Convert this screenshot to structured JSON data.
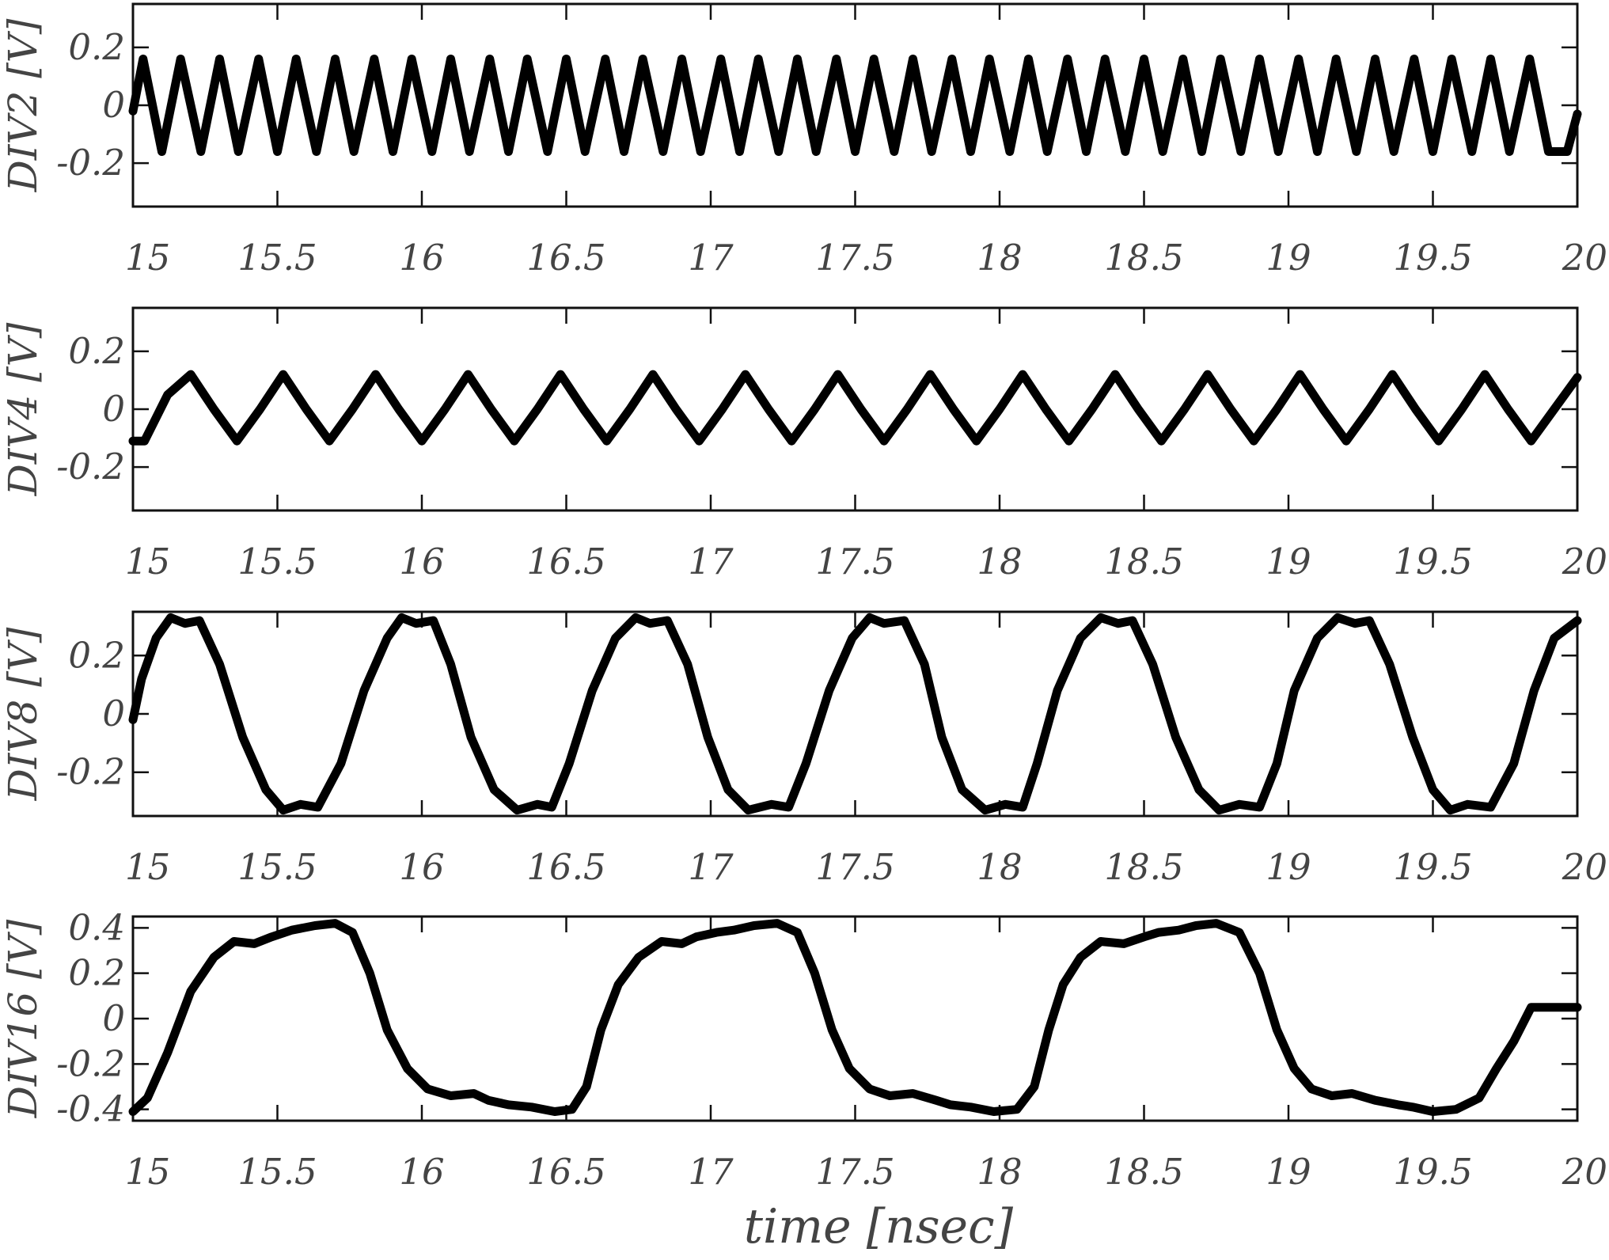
{
  "chart_data": [
    {
      "type": "line",
      "ylabel": "DIV2 [V]",
      "xlim": [
        15,
        20
      ],
      "ylim": [
        -0.35,
        0.35
      ],
      "xticks": [
        15,
        15.5,
        16,
        16.5,
        17,
        17.5,
        18,
        18.5,
        19,
        19.5,
        20
      ],
      "xticklabels": [
        "15",
        "15.5",
        "16",
        "16.5",
        "17",
        "17.5",
        "18",
        "18.5",
        "19",
        "19.5",
        "20"
      ],
      "yticks": [
        -0.2,
        0,
        0.2
      ],
      "yticklabels": [
        "-0.2",
        "0",
        "0.2"
      ],
      "series": [
        {
          "x": [
            15.0,
            15.035,
            15.1,
            15.165,
            15.235,
            15.3,
            15.365,
            15.435,
            15.5,
            15.565,
            15.635,
            15.7,
            15.765,
            15.835,
            15.9,
            15.965,
            16.035,
            16.1,
            16.165,
            16.235,
            16.3,
            16.365,
            16.435,
            16.5,
            16.565,
            16.635,
            16.7,
            16.765,
            16.835,
            16.9,
            16.965,
            17.035,
            17.1,
            17.165,
            17.235,
            17.3,
            17.365,
            17.435,
            17.5,
            17.565,
            17.635,
            17.7,
            17.765,
            17.835,
            17.9,
            17.965,
            18.035,
            18.1,
            18.165,
            18.235,
            18.3,
            18.365,
            18.435,
            18.5,
            18.565,
            18.635,
            18.7,
            18.765,
            18.835,
            18.9,
            18.965,
            19.035,
            19.1,
            19.165,
            19.235,
            19.3,
            19.365,
            19.435,
            19.5,
            19.565,
            19.635,
            19.7,
            19.765,
            19.835,
            19.9,
            19.965,
            20.0
          ],
          "y": [
            -0.02,
            0.16,
            -0.16,
            0.16,
            -0.16,
            0.16,
            -0.16,
            0.16,
            -0.16,
            0.16,
            -0.16,
            0.16,
            -0.16,
            0.16,
            -0.16,
            0.16,
            -0.16,
            0.16,
            -0.16,
            0.16,
            -0.16,
            0.16,
            -0.16,
            0.16,
            -0.16,
            0.16,
            -0.16,
            0.16,
            -0.16,
            0.16,
            -0.16,
            0.16,
            -0.16,
            0.16,
            -0.16,
            0.16,
            -0.16,
            0.16,
            -0.16,
            0.16,
            -0.16,
            0.16,
            -0.16,
            0.16,
            -0.16,
            0.16,
            -0.16,
            0.16,
            -0.16,
            0.16,
            -0.16,
            0.16,
            -0.16,
            0.16,
            -0.16,
            0.16,
            -0.16,
            0.16,
            -0.16,
            0.16,
            -0.16,
            0.16,
            -0.16,
            0.16,
            -0.16,
            0.16,
            -0.16,
            0.16,
            -0.16,
            0.16,
            -0.16,
            0.16,
            -0.16,
            0.16,
            -0.16,
            -0.16,
            -0.03
          ]
        }
      ]
    },
    {
      "type": "line",
      "ylabel": "DIV4 [V]",
      "xlim": [
        15,
        20
      ],
      "ylim": [
        -0.35,
        0.35
      ],
      "xticks": [
        15,
        15.5,
        16,
        16.5,
        17,
        17.5,
        18,
        18.5,
        19,
        19.5,
        20
      ],
      "xticklabels": [
        "15",
        "15.5",
        "16",
        "16.5",
        "17",
        "17.5",
        "18",
        "18.5",
        "19",
        "19.5",
        "20"
      ],
      "yticks": [
        -0.2,
        0,
        0.2
      ],
      "yticklabels": [
        "-0.2",
        "0",
        "0.2"
      ],
      "series": [
        {
          "x": [
            15.0,
            15.04,
            15.12,
            15.2,
            15.28,
            15.36,
            15.44,
            15.52,
            15.6,
            15.68,
            15.76,
            15.84,
            15.92,
            16.0,
            16.08,
            16.16,
            16.24,
            16.32,
            16.4,
            16.48,
            16.56,
            16.64,
            16.72,
            16.8,
            16.88,
            16.96,
            17.04,
            17.12,
            17.2,
            17.28,
            17.36,
            17.44,
            17.52,
            17.6,
            17.68,
            17.76,
            17.84,
            17.92,
            18.0,
            18.08,
            18.16,
            18.24,
            18.32,
            18.4,
            18.48,
            18.56,
            18.64,
            18.72,
            18.8,
            18.88,
            18.96,
            19.04,
            19.12,
            19.2,
            19.28,
            19.36,
            19.44,
            19.52,
            19.6,
            19.68,
            19.76,
            19.84,
            19.92,
            20.0
          ],
          "y": [
            -0.11,
            -0.11,
            0.05,
            0.12,
            0.0,
            -0.11,
            0.0,
            0.12,
            0.0,
            -0.11,
            0.0,
            0.12,
            0.0,
            -0.11,
            0.0,
            0.12,
            0.0,
            -0.11,
            0.0,
            0.12,
            0.0,
            -0.11,
            0.0,
            0.12,
            0.0,
            -0.11,
            0.0,
            0.12,
            0.0,
            -0.11,
            0.0,
            0.12,
            0.0,
            -0.11,
            0.0,
            0.12,
            0.0,
            -0.11,
            0.0,
            0.12,
            0.0,
            -0.11,
            0.0,
            0.12,
            0.0,
            -0.11,
            0.0,
            0.12,
            0.0,
            -0.11,
            0.0,
            0.12,
            0.0,
            -0.11,
            0.0,
            0.12,
            0.0,
            -0.11,
            0.0,
            0.12,
            0.0,
            -0.11,
            0.0,
            0.11
          ]
        }
      ]
    },
    {
      "type": "line",
      "ylabel": "DIV8 [V]",
      "xlim": [
        15,
        20
      ],
      "ylim": [
        -0.35,
        0.35
      ],
      "xticks": [
        15,
        15.5,
        16,
        16.5,
        17,
        17.5,
        18,
        18.5,
        19,
        19.5,
        20
      ],
      "xticklabels": [
        "15",
        "15.5",
        "16",
        "16.5",
        "17",
        "17.5",
        "18",
        "18.5",
        "19",
        "19.5",
        "20"
      ],
      "yticks": [
        -0.2,
        0,
        0.2
      ],
      "yticklabels": [
        "-0.2",
        "0",
        "0.2"
      ],
      "series": [
        {
          "x": [
            15.0,
            15.03,
            15.08,
            15.13,
            15.18,
            15.23,
            15.3,
            15.38,
            15.46,
            15.52,
            15.58,
            15.64,
            15.72,
            15.8,
            15.88,
            15.93,
            15.98,
            16.04,
            16.1,
            16.17,
            16.25,
            16.33,
            16.4,
            16.45,
            16.51,
            16.59,
            16.67,
            16.74,
            16.79,
            16.85,
            16.92,
            16.99,
            17.06,
            17.13,
            17.21,
            17.27,
            17.33,
            17.41,
            17.49,
            17.55,
            17.6,
            17.67,
            17.74,
            17.8,
            17.87,
            17.95,
            18.02,
            18.08,
            18.13,
            18.2,
            18.28,
            18.35,
            18.41,
            18.46,
            18.53,
            18.61,
            18.69,
            18.76,
            18.83,
            18.9,
            18.96,
            19.02,
            19.1,
            19.17,
            19.23,
            19.28,
            19.35,
            19.43,
            19.5,
            19.56,
            19.62,
            19.7,
            19.78,
            19.85,
            19.92,
            20.0
          ],
          "y": [
            -0.02,
            0.12,
            0.26,
            0.33,
            0.31,
            0.32,
            0.17,
            -0.08,
            -0.26,
            -0.33,
            -0.31,
            -0.32,
            -0.17,
            0.08,
            0.26,
            0.33,
            0.31,
            0.32,
            0.17,
            -0.08,
            -0.26,
            -0.33,
            -0.31,
            -0.32,
            -0.17,
            0.08,
            0.26,
            0.33,
            0.31,
            0.32,
            0.17,
            -0.08,
            -0.26,
            -0.33,
            -0.31,
            -0.32,
            -0.17,
            0.08,
            0.26,
            0.33,
            0.31,
            0.32,
            0.17,
            -0.08,
            -0.26,
            -0.33,
            -0.31,
            -0.32,
            -0.17,
            0.08,
            0.26,
            0.33,
            0.31,
            0.32,
            0.17,
            -0.08,
            -0.26,
            -0.33,
            -0.31,
            -0.32,
            -0.17,
            0.08,
            0.26,
            0.33,
            0.31,
            0.32,
            0.17,
            -0.08,
            -0.26,
            -0.33,
            -0.31,
            -0.32,
            -0.17,
            0.08,
            0.26,
            0.32
          ]
        }
      ]
    },
    {
      "type": "line",
      "ylabel": "DIV16 [V]",
      "xlim": [
        15,
        20
      ],
      "ylim": [
        -0.45,
        0.45
      ],
      "xticks": [
        15,
        15.5,
        16,
        16.5,
        17,
        17.5,
        18,
        18.5,
        19,
        19.5,
        20
      ],
      "xticklabels": [
        "15",
        "15.5",
        "16",
        "16.5",
        "17",
        "17.5",
        "18",
        "18.5",
        "19",
        "19.5",
        "20"
      ],
      "yticks": [
        -0.4,
        -0.2,
        0,
        0.2,
        0.4
      ],
      "yticklabels": [
        "-0.4",
        "-0.2",
        "0",
        "0.2",
        "0.4"
      ],
      "xlabel": "time [nsec]",
      "series": [
        {
          "x": [
            15.0,
            15.05,
            15.12,
            15.2,
            15.28,
            15.35,
            15.42,
            15.48,
            15.55,
            15.63,
            15.7,
            15.76,
            15.82,
            15.88,
            15.95,
            16.02,
            16.1,
            16.18,
            16.23,
            16.3,
            16.38,
            16.46,
            16.52,
            16.57,
            16.62,
            16.68,
            16.75,
            16.83,
            16.9,
            16.95,
            17.02,
            17.08,
            17.15,
            17.23,
            17.3,
            17.36,
            17.42,
            17.48,
            17.55,
            17.62,
            17.7,
            17.78,
            17.83,
            17.9,
            17.98,
            18.06,
            18.12,
            18.17,
            18.22,
            18.28,
            18.35,
            18.43,
            18.5,
            18.55,
            18.62,
            18.68,
            18.75,
            18.83,
            18.9,
            18.96,
            19.02,
            19.08,
            19.15,
            19.22,
            19.3,
            19.38,
            19.43,
            19.5,
            19.58,
            19.66,
            19.72,
            19.78,
            19.84,
            19.9,
            19.96,
            20.0
          ],
          "y": [
            -0.41,
            -0.35,
            -0.15,
            0.12,
            0.27,
            0.34,
            0.33,
            0.36,
            0.39,
            0.41,
            0.42,
            0.38,
            0.2,
            -0.05,
            -0.22,
            -0.31,
            -0.34,
            -0.33,
            -0.36,
            -0.38,
            -0.39,
            -0.41,
            -0.4,
            -0.3,
            -0.05,
            0.15,
            0.27,
            0.34,
            0.33,
            0.36,
            0.38,
            0.39,
            0.41,
            0.42,
            0.38,
            0.2,
            -0.05,
            -0.22,
            -0.31,
            -0.34,
            -0.33,
            -0.36,
            -0.38,
            -0.39,
            -0.41,
            -0.4,
            -0.3,
            -0.05,
            0.15,
            0.27,
            0.34,
            0.33,
            0.36,
            0.38,
            0.39,
            0.41,
            0.42,
            0.38,
            0.2,
            -0.05,
            -0.22,
            -0.31,
            -0.34,
            -0.33,
            -0.36,
            -0.38,
            -0.39,
            -0.41,
            -0.4,
            -0.35,
            -0.22,
            -0.1,
            0.05,
            0.05,
            0.05,
            0.05
          ]
        }
      ]
    }
  ]
}
